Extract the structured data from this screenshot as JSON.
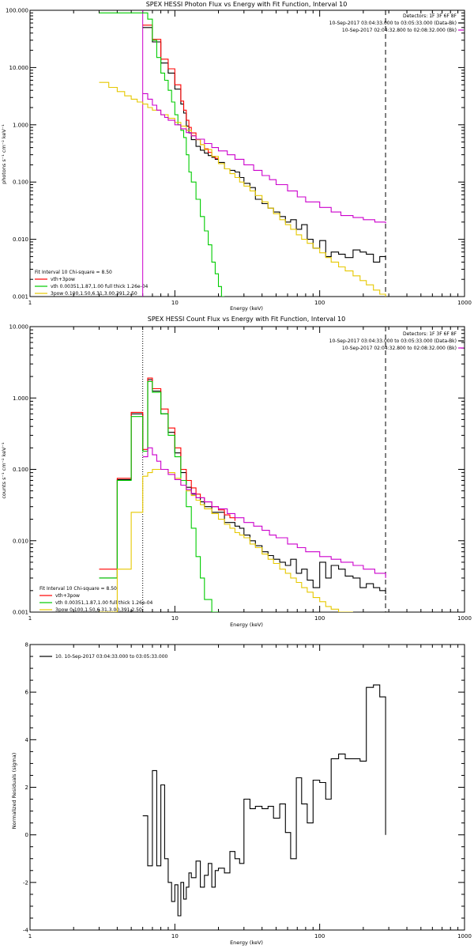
{
  "colors": {
    "black": "#000000",
    "red": "#ff0000",
    "green": "#00cc00",
    "yellow": "#e6c800",
    "magenta": "#cc00cc"
  },
  "chart_data": [
    {
      "type": "line",
      "title": "SPEX HESSI Photon Flux vs Energy with Fit Function, Interval 10",
      "xlabel": "Energy (keV)",
      "ylabel": "photons s⁻¹ cm⁻² keV⁻¹",
      "xlim": [
        1,
        1000
      ],
      "ylim": [
        0.001,
        100
      ],
      "xscale": "log",
      "yscale": "log",
      "xtick_labels": [
        "1",
        "10",
        "100",
        "1000"
      ],
      "ytick_labels": [
        "0.001",
        "0.010",
        "0.100",
        "1.000",
        "10.000",
        "100.000"
      ],
      "legend_header": [
        "Detectors: 1F 3F 6F 8F",
        "10-Sep-2017 03:04:33.000 to 03:05:33.000 (Data-Bk)",
        "10-Sep-2017 02:04:32.800 to 02:08:32.000 (Bk)"
      ],
      "fit_info": "Fit Interval 10   Chi-square = 8.50",
      "fit_legend": [
        "vth+3pow",
        "vth 0.00351,1.87,1.00  full thick 1.26e-04",
        "3pow 0.100,1.50,6.31,3.00,391,2.50"
      ],
      "vlines": [
        {
          "x": 6,
          "style": "solid",
          "color": "magenta"
        },
        {
          "x": 285,
          "style": "dashed",
          "color": "black"
        }
      ],
      "series": [
        {
          "name": "Data-Bk",
          "color": "black",
          "x": [
            6,
            6.5,
            7,
            7.5,
            8,
            8.5,
            9,
            9.5,
            10,
            10.5,
            11,
            11.5,
            12,
            12.5,
            13,
            14,
            15,
            16,
            17,
            18,
            19,
            20,
            22,
            24,
            26,
            28,
            30,
            33,
            36,
            40,
            44,
            48,
            53,
            58,
            63,
            69,
            75,
            82,
            90,
            100,
            110,
            120,
            135,
            150,
            170,
            190,
            210,
            235,
            260,
            285
          ],
          "values": [
            50,
            50,
            28,
            28,
            12,
            12,
            8,
            8,
            4.2,
            4.2,
            2.3,
            1.6,
            0.95,
            0.72,
            0.55,
            0.42,
            0.36,
            0.32,
            0.29,
            0.27,
            0.25,
            0.22,
            0.17,
            0.16,
            0.15,
            0.12,
            0.095,
            0.08,
            0.05,
            0.042,
            0.035,
            0.03,
            0.025,
            0.02,
            0.022,
            0.015,
            0.018,
            0.01,
            0.007,
            0.0095,
            0.005,
            0.006,
            0.0055,
            0.0048,
            0.0065,
            0.006,
            0.0055,
            0.004,
            0.005,
            0.0045
          ]
        },
        {
          "name": "vth+3pow",
          "color": "red",
          "x": [
            6,
            6.5,
            7,
            7.5,
            8,
            8.5,
            9,
            9.5,
            10,
            10.5,
            11,
            11.5,
            12,
            12.5,
            13,
            14,
            15,
            16,
            17,
            18,
            19,
            20
          ],
          "values": [
            55,
            55,
            31,
            31,
            14,
            14,
            9.5,
            9.5,
            5,
            5,
            2.6,
            1.8,
            1.2,
            0.9,
            0.72,
            0.55,
            0.45,
            0.38,
            0.33,
            0.28,
            0.26,
            0.24
          ]
        },
        {
          "name": "vth",
          "color": "green",
          "x": [
            3,
            3.5,
            4,
            4.5,
            5,
            5.5,
            6,
            6.5,
            7,
            7.5,
            8,
            8.5,
            9,
            9.5,
            10,
            10.5,
            11,
            11.5,
            12,
            12.5,
            13,
            14,
            15,
            16,
            17,
            18,
            19,
            20,
            21,
            22
          ],
          "values": [
            90,
            90,
            90,
            90,
            90,
            90,
            90,
            70,
            30,
            15,
            8,
            6,
            4,
            2.5,
            1.5,
            1,
            0.8,
            0.6,
            0.3,
            0.15,
            0.1,
            0.05,
            0.025,
            0.014,
            0.008,
            0.004,
            0.0025,
            0.0015,
            0.001,
            0.001
          ]
        },
        {
          "name": "3pow",
          "color": "yellow",
          "x": [
            3,
            3.5,
            4,
            4.5,
            5,
            5.5,
            6,
            6.5,
            7,
            8,
            9,
            10,
            11,
            12,
            13,
            14,
            15,
            16,
            18,
            20,
            22,
            24,
            26,
            28,
            30,
            33,
            36,
            40,
            44,
            48,
            53,
            58,
            63,
            69,
            75,
            82,
            90,
            100,
            110,
            120,
            135,
            150,
            170,
            190,
            210,
            235,
            260,
            285
          ],
          "values": [
            5.5,
            4.5,
            3.8,
            3.2,
            2.8,
            2.5,
            2.3,
            2.0,
            1.8,
            1.5,
            1.3,
            1.1,
            0.95,
            0.8,
            0.65,
            0.55,
            0.45,
            0.37,
            0.28,
            0.21,
            0.17,
            0.14,
            0.12,
            0.1,
            0.085,
            0.07,
            0.058,
            0.045,
            0.035,
            0.028,
            0.022,
            0.018,
            0.015,
            0.012,
            0.01,
            0.0085,
            0.007,
            0.0058,
            0.0048,
            0.004,
            0.0033,
            0.0028,
            0.0023,
            0.0019,
            0.0016,
            0.0013,
            0.0011,
            0.001
          ]
        },
        {
          "name": "Bk",
          "color": "magenta",
          "x": [
            6,
            6.5,
            7,
            7.5,
            8,
            8.5,
            9,
            10,
            11,
            12,
            13,
            14,
            16,
            18,
            20,
            23,
            26,
            30,
            35,
            40,
            45,
            50,
            60,
            70,
            80,
            100,
            120,
            140,
            170,
            200,
            240,
            285
          ],
          "values": [
            3.5,
            2.8,
            2.2,
            1.8,
            1.5,
            1.35,
            1.2,
            1.0,
            0.85,
            0.73,
            0.64,
            0.56,
            0.47,
            0.4,
            0.35,
            0.3,
            0.25,
            0.2,
            0.16,
            0.13,
            0.11,
            0.09,
            0.07,
            0.055,
            0.045,
            0.036,
            0.03,
            0.026,
            0.024,
            0.022,
            0.02,
            0.019
          ]
        }
      ]
    },
    {
      "type": "line",
      "title": "SPEX HESSI Count Flux vs Energy with Fit Function, Interval 10",
      "xlabel": "Energy (keV)",
      "ylabel": "counts s⁻¹ cm⁻² keV⁻¹",
      "xlim": [
        1,
        1000
      ],
      "ylim": [
        0.001,
        10
      ],
      "xscale": "log",
      "yscale": "log",
      "xtick_labels": [
        "1",
        "10",
        "100",
        "1000"
      ],
      "ytick_labels": [
        "0.001",
        "0.010",
        "0.100",
        "1.000",
        "10.000"
      ],
      "legend_header": [
        "Detectors: 1F 3F 6F 8F",
        "10-Sep-2017 03:04:33.000 to 03:05:33.000 (Data-Bk)",
        "10-Sep-2017 02:04:32.800 to 02:08:32.000 (Bk)"
      ],
      "fit_info": "Fit Interval 10   Chi-square = 8.50",
      "fit_legend": [
        "vth+3pow",
        "vth 0.00351,1.87,1.00  full thick 1.26e-04",
        "3pow 0.100,1.50,6.31,3.00,391,2.50"
      ],
      "vlines": [
        {
          "x": 6,
          "style": "dotted",
          "color": "black"
        },
        {
          "x": 285,
          "style": "dashed",
          "color": "black"
        }
      ],
      "series": [
        {
          "name": "Data-Bk",
          "color": "black",
          "x": [
            3,
            4,
            5,
            6,
            6.5,
            7,
            8,
            9,
            10,
            11,
            12,
            13,
            14,
            15,
            16,
            18,
            20,
            22,
            24,
            26,
            28,
            30,
            33,
            36,
            40,
            44,
            48,
            53,
            58,
            63,
            69,
            75,
            82,
            90,
            100,
            110,
            120,
            135,
            150,
            170,
            190,
            210,
            235,
            260,
            285
          ],
          "values": [
            0.003,
            0.072,
            0.6,
            0.18,
            1.8,
            1.25,
            0.6,
            0.33,
            0.17,
            0.09,
            0.056,
            0.045,
            0.04,
            0.035,
            0.03,
            0.025,
            0.025,
            0.018,
            0.018,
            0.016,
            0.015,
            0.012,
            0.01,
            0.0085,
            0.007,
            0.0062,
            0.0055,
            0.005,
            0.0045,
            0.0055,
            0.0035,
            0.004,
            0.0028,
            0.0022,
            0.005,
            0.003,
            0.0045,
            0.004,
            0.0032,
            0.003,
            0.0022,
            0.0025,
            0.0022,
            0.002,
            0.0018
          ]
        },
        {
          "name": "vth+3pow",
          "color": "red",
          "x": [
            3,
            4,
            5,
            6,
            6.5,
            7,
            8,
            9,
            10,
            11,
            12,
            13,
            14,
            15,
            16,
            18,
            20,
            22,
            24,
            26
          ],
          "values": [
            0.004,
            0.075,
            0.63,
            0.19,
            1.9,
            1.35,
            0.7,
            0.38,
            0.2,
            0.1,
            0.07,
            0.055,
            0.045,
            0.04,
            0.035,
            0.03,
            0.027,
            0.023,
            0.021,
            0.019
          ]
        },
        {
          "name": "vth",
          "color": "green",
          "x": [
            3,
            4,
            5,
            6,
            6.5,
            7,
            8,
            9,
            10,
            11,
            12,
            13,
            14,
            15,
            16,
            18,
            19,
            20
          ],
          "values": [
            0.003,
            0.07,
            0.55,
            0.18,
            1.7,
            1.2,
            0.6,
            0.3,
            0.15,
            0.07,
            0.03,
            0.015,
            0.006,
            0.003,
            0.0015,
            0.001,
            0.001,
            0.001
          ]
        },
        {
          "name": "3pow",
          "color": "yellow",
          "x": [
            3,
            4,
            5,
            6,
            6.5,
            7,
            8,
            9,
            10,
            11,
            12,
            13,
            14,
            15,
            16,
            18,
            20,
            22,
            24,
            26,
            28,
            30,
            33,
            36,
            40,
            44,
            48,
            53,
            58,
            63,
            69,
            75,
            82,
            90,
            100,
            110,
            120,
            135,
            150,
            170
          ],
          "values": [
            0.001,
            0.004,
            0.025,
            0.08,
            0.09,
            0.1,
            0.1,
            0.09,
            0.075,
            0.06,
            0.05,
            0.043,
            0.037,
            0.032,
            0.028,
            0.024,
            0.02,
            0.017,
            0.015,
            0.013,
            0.012,
            0.011,
            0.009,
            0.008,
            0.0065,
            0.0055,
            0.0048,
            0.004,
            0.0035,
            0.003,
            0.0026,
            0.0022,
            0.0019,
            0.0016,
            0.0014,
            0.0012,
            0.0011,
            0.001,
            0.001,
            0.001
          ]
        },
        {
          "name": "Bk",
          "color": "magenta",
          "x": [
            6,
            6.5,
            7,
            7.5,
            8,
            9,
            10,
            11,
            12,
            13,
            14,
            16,
            18,
            20,
            23,
            26,
            30,
            35,
            40,
            45,
            50,
            60,
            70,
            80,
            100,
            120,
            140,
            170,
            200,
            240,
            285
          ],
          "values": [
            0.15,
            0.2,
            0.16,
            0.13,
            0.1,
            0.085,
            0.072,
            0.06,
            0.052,
            0.046,
            0.04,
            0.035,
            0.03,
            0.028,
            0.024,
            0.021,
            0.018,
            0.016,
            0.014,
            0.012,
            0.011,
            0.009,
            0.008,
            0.007,
            0.006,
            0.0055,
            0.005,
            0.0045,
            0.004,
            0.0035,
            0.003
          ]
        }
      ]
    },
    {
      "type": "line",
      "title": "",
      "xlabel": "Energy (keV)",
      "ylabel": "Normalized Residuals (sigma)",
      "xlim": [
        1,
        1000
      ],
      "ylim": [
        -4,
        8
      ],
      "xscale": "log",
      "xtick_labels": [
        "1",
        "10",
        "100",
        "1000"
      ],
      "ytick_labels": [
        "-4",
        "-2",
        "0",
        "2",
        "4",
        "6",
        "8"
      ],
      "legend": [
        "10. 10-Sep-2017 03:04:33.000 to 03:05:33.000"
      ],
      "series": [
        {
          "name": "10. 10-Sep-2017 03:04:33.000 to 03:05:33.000",
          "color": "black",
          "x": [
            6,
            6.5,
            7,
            7.5,
            8,
            8.5,
            9,
            9.5,
            10,
            10.5,
            11,
            11.5,
            12,
            12.5,
            13,
            14,
            15,
            16,
            17,
            18,
            19,
            20,
            22,
            24,
            26,
            28,
            30,
            33,
            36,
            40,
            44,
            48,
            53,
            58,
            63,
            69,
            75,
            82,
            90,
            100,
            110,
            120,
            135,
            150,
            170,
            190,
            210,
            235,
            260,
            285
          ],
          "values": [
            0.8,
            -1.3,
            2.7,
            -1.3,
            2.1,
            -1.0,
            -2.0,
            -2.8,
            -2.1,
            -3.4,
            -2.0,
            -2.7,
            -2.2,
            -1.6,
            -1.8,
            -1.1,
            -2.2,
            -1.7,
            -1.2,
            -2.2,
            -1.5,
            -1.4,
            -1.6,
            -0.7,
            -1.0,
            -1.2,
            1.5,
            1.1,
            1.2,
            1.1,
            1.2,
            0.7,
            1.3,
            0.1,
            -1.0,
            2.4,
            1.3,
            0.5,
            2.3,
            2.2,
            1.5,
            3.2,
            3.4,
            3.2,
            3.2,
            3.1,
            6.2,
            6.3,
            5.8,
            0
          ]
        }
      ]
    }
  ]
}
